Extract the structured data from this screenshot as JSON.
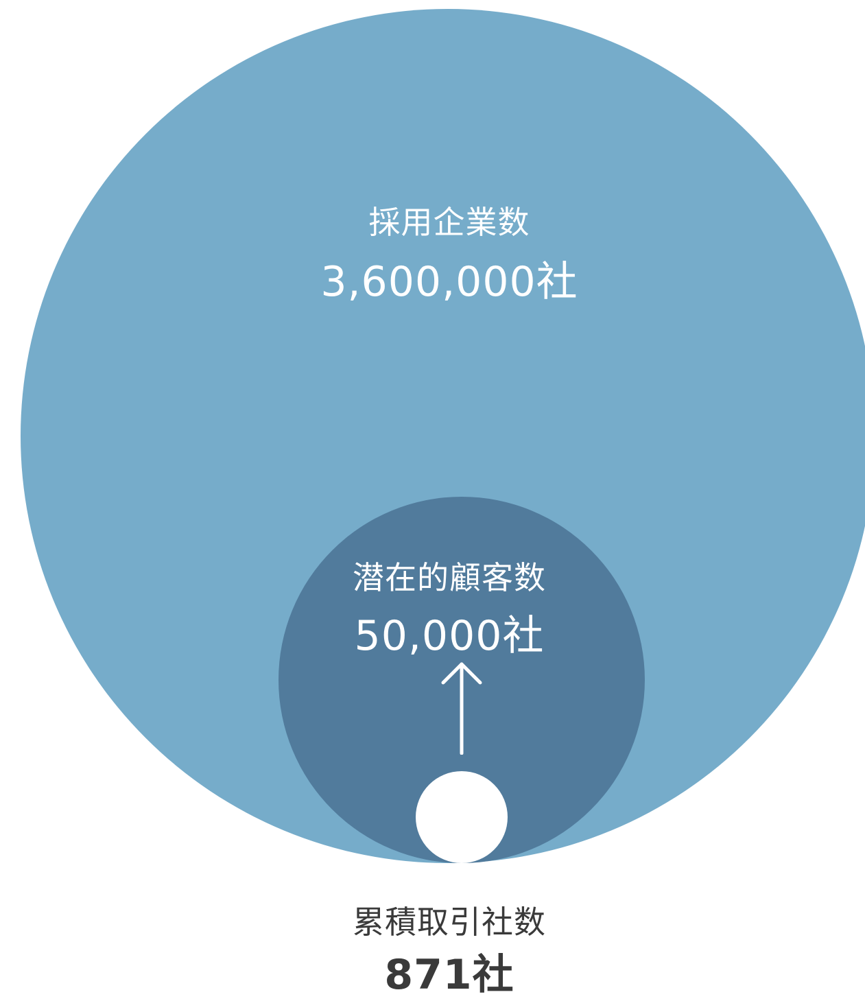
{
  "colors": {
    "outer_circle": "#76acca",
    "middle_circle": "#517b9c",
    "inner_circle": "#ffffff",
    "text_on_circle": "#ffffff",
    "text_below": "#3a3a3a"
  },
  "outer": {
    "title": "採用企業数",
    "value": "3,600,000社"
  },
  "middle": {
    "title": "潜在的顧客数",
    "value": "50,000社"
  },
  "inner": {
    "title": "累積取引社数",
    "value": "871社"
  },
  "arrow": {
    "direction": "up",
    "icon": "arrow-up-icon"
  }
}
